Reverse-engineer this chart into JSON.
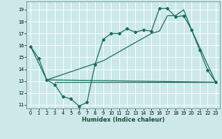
{
  "xlabel": "Humidex (Indice chaleur)",
  "bg_color": "#cce8e8",
  "grid_color": "#ffffff",
  "line_color": "#1a6b5a",
  "xlim": [
    -0.5,
    23.5
  ],
  "ylim": [
    10.7,
    19.7
  ],
  "yticks": [
    11,
    12,
    13,
    14,
    15,
    16,
    17,
    18,
    19
  ],
  "xticks": [
    0,
    1,
    2,
    3,
    4,
    5,
    6,
    7,
    8,
    9,
    10,
    11,
    12,
    13,
    14,
    15,
    16,
    17,
    18,
    19,
    20,
    21,
    22,
    23
  ],
  "line1_x": [
    0,
    1,
    2,
    3,
    4,
    5,
    6,
    7,
    8,
    9,
    10,
    11,
    12,
    13,
    14,
    15,
    16,
    17,
    18,
    19,
    20,
    21,
    22,
    23
  ],
  "line1_y": [
    15.9,
    14.9,
    13.1,
    12.7,
    11.7,
    11.5,
    10.9,
    11.2,
    14.4,
    16.5,
    17.0,
    17.0,
    17.4,
    17.1,
    17.3,
    17.2,
    19.1,
    19.1,
    18.4,
    18.5,
    17.3,
    15.6,
    13.9,
    12.9
  ],
  "line2_x": [
    0,
    2,
    9,
    15,
    16,
    17,
    18,
    19,
    20,
    23
  ],
  "line2_y": [
    15.9,
    13.1,
    14.7,
    17.0,
    17.2,
    18.5,
    18.5,
    19.0,
    17.3,
    12.9
  ],
  "line3_x": [
    3,
    15,
    20,
    23
  ],
  "line3_y": [
    12.9,
    12.9,
    12.9,
    12.9
  ],
  "line4_x": [
    2,
    23
  ],
  "line4_y": [
    13.1,
    12.9
  ]
}
